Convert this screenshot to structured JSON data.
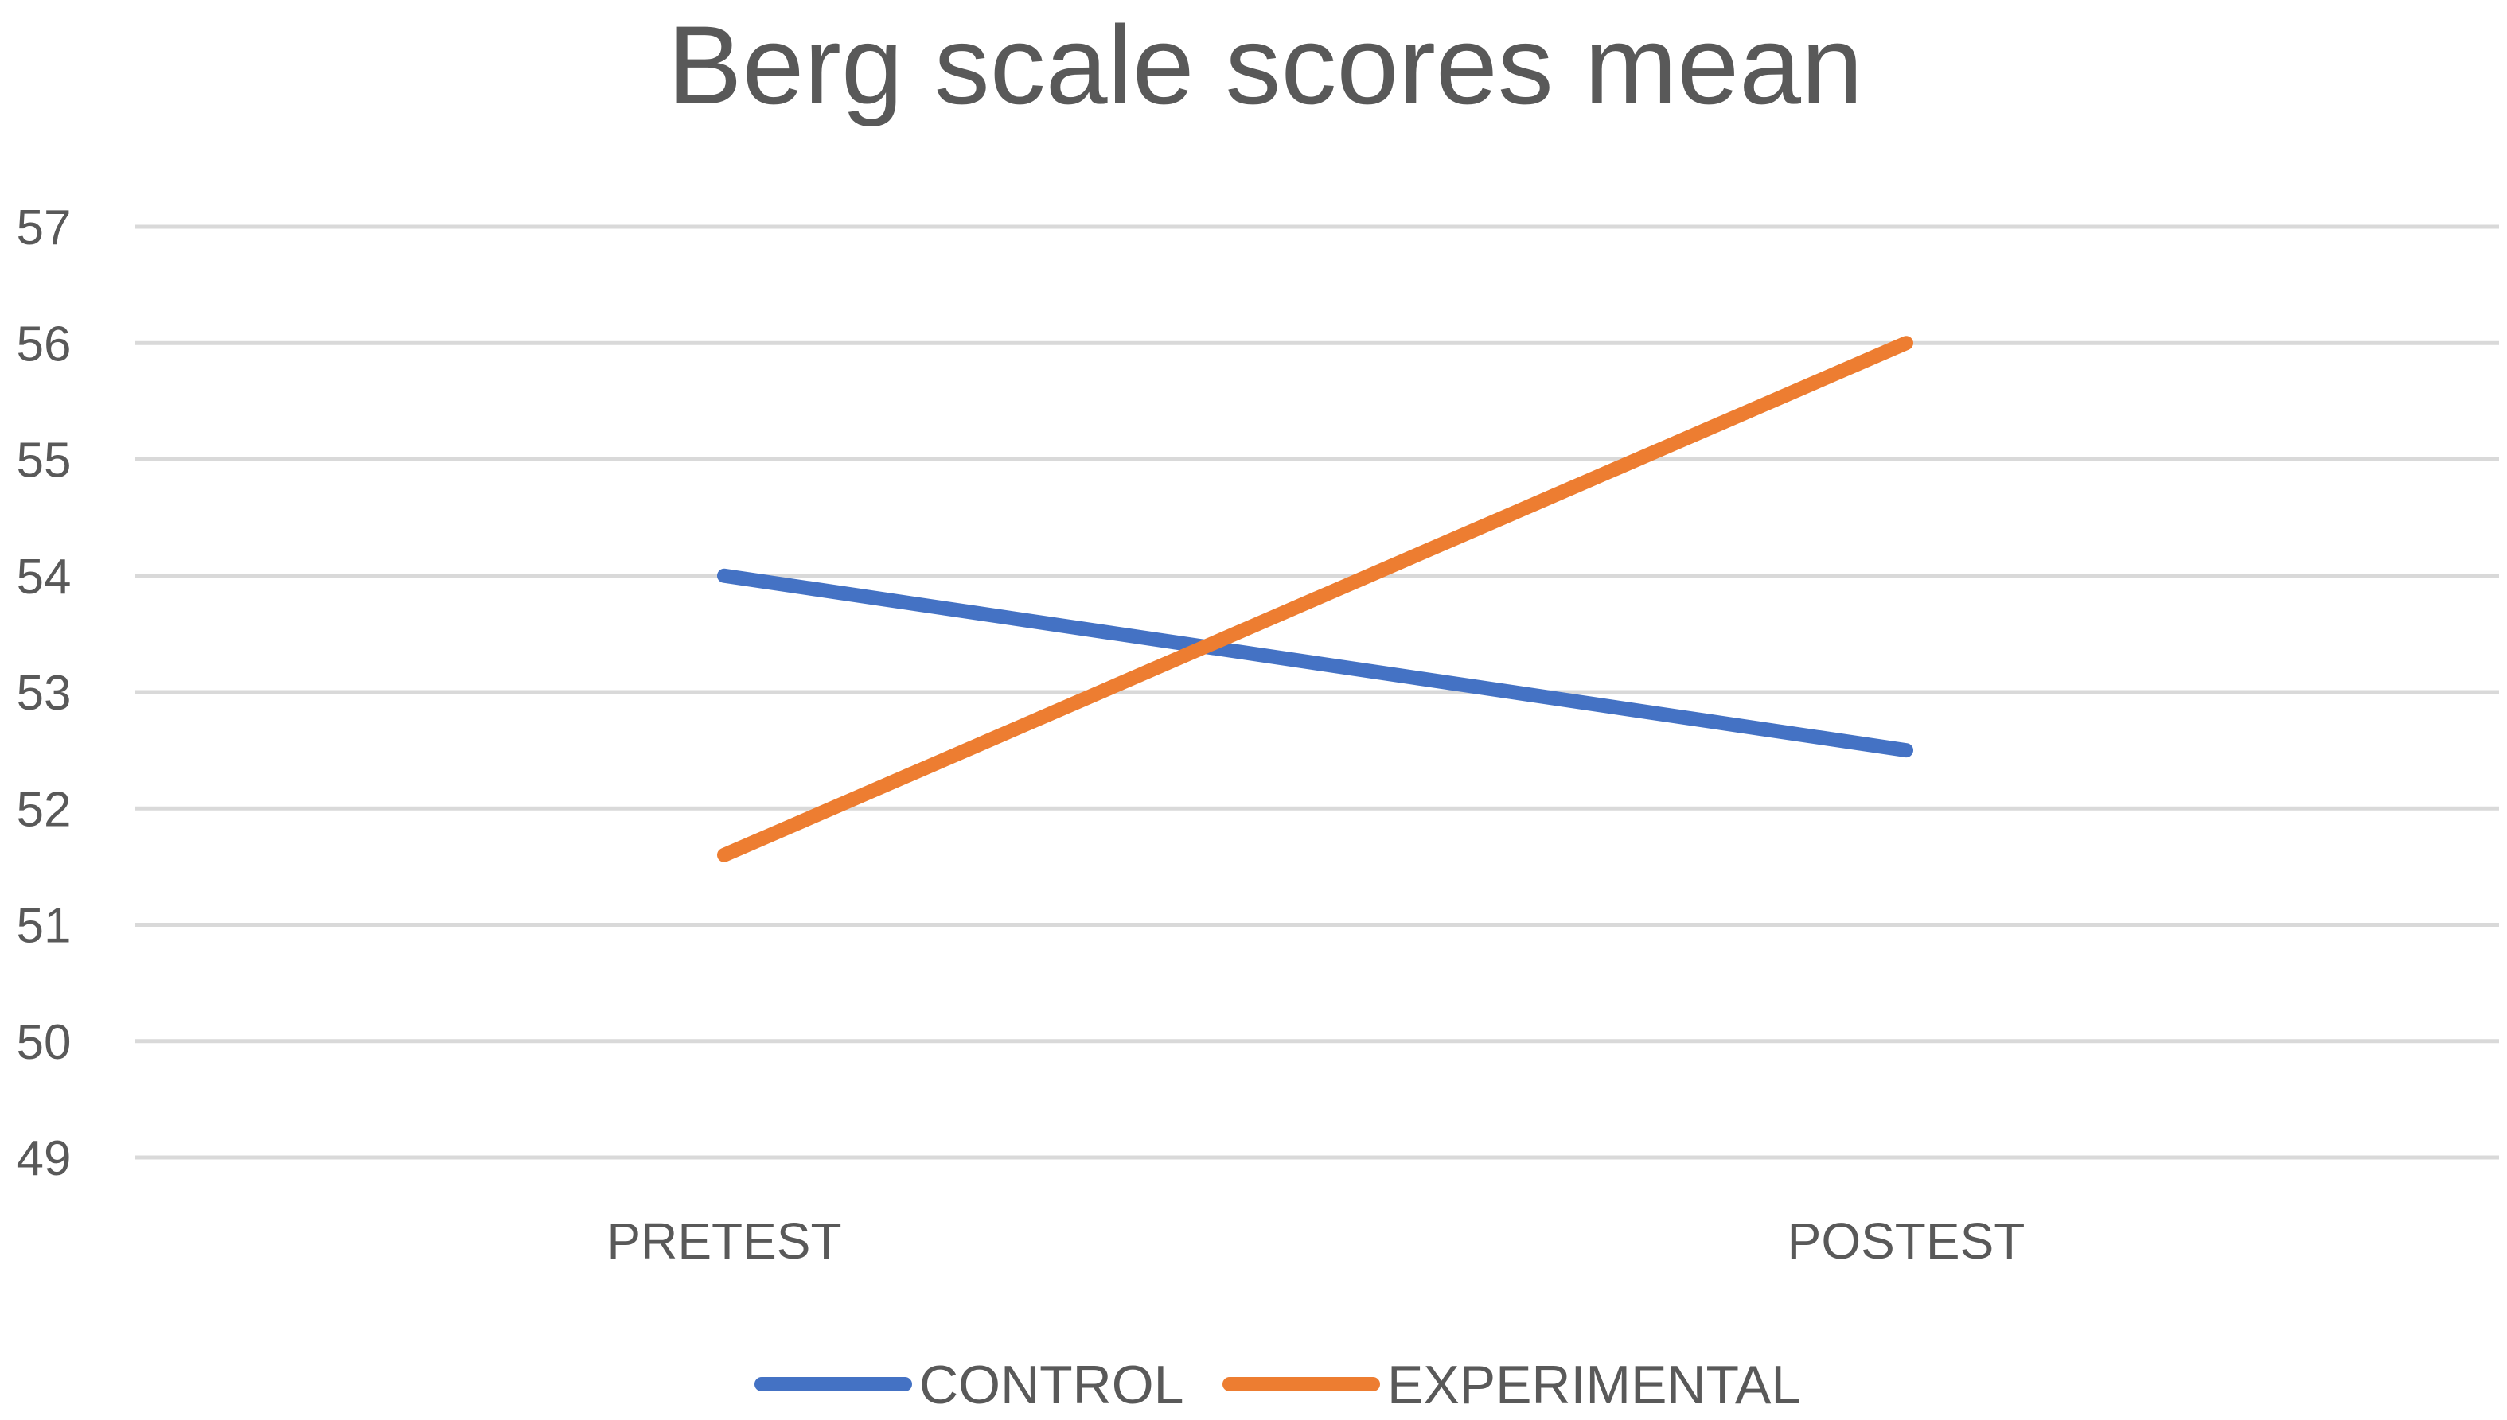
{
  "chart_data": {
    "type": "line",
    "title": "Berg scale scores mean",
    "xlabel": "",
    "ylabel": "",
    "categories": [
      "PRETEST",
      "POSTEST"
    ],
    "ylim": [
      49,
      57
    ],
    "yticks": [
      49,
      50,
      51,
      52,
      53,
      54,
      55,
      56,
      57
    ],
    "grid": true,
    "legend_position": "bottom",
    "series": [
      {
        "name": "CONTROL",
        "values": [
          54.0,
          52.5
        ],
        "color": "#4472C4"
      },
      {
        "name": "EXPERIMENTAL",
        "values": [
          51.6,
          56.0
        ],
        "color": "#ED7D31"
      }
    ]
  }
}
